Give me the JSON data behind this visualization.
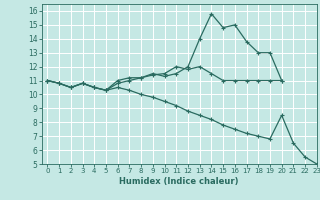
{
  "xlabel": "Humidex (Indice chaleur)",
  "xlim": [
    -0.5,
    23
  ],
  "ylim": [
    5,
    16.5
  ],
  "xticks": [
    0,
    1,
    2,
    3,
    4,
    5,
    6,
    7,
    8,
    9,
    10,
    11,
    12,
    13,
    14,
    15,
    16,
    17,
    18,
    19,
    20,
    21,
    22,
    23
  ],
  "yticks": [
    5,
    6,
    7,
    8,
    9,
    10,
    11,
    12,
    13,
    14,
    15,
    16
  ],
  "bg_color": "#c5e8e4",
  "line_color": "#2a6b60",
  "grid_color": "#ffffff",
  "line1_x": [
    0,
    1,
    2,
    3,
    4,
    5,
    6,
    7,
    8,
    9,
    10,
    11,
    12,
    13,
    14,
    15,
    16,
    17,
    18,
    19,
    20
  ],
  "line1_y": [
    11,
    10.8,
    10.5,
    10.8,
    10.5,
    10.3,
    11.0,
    11.2,
    11.2,
    11.5,
    11.3,
    11.5,
    12.0,
    14.0,
    15.8,
    14.8,
    15.0,
    13.8,
    13.0,
    13.0,
    11.0
  ],
  "line2_x": [
    0,
    1,
    2,
    3,
    4,
    5,
    6,
    7,
    8,
    9,
    10,
    11,
    12,
    13,
    14,
    15,
    16,
    17,
    18,
    19,
    20
  ],
  "line2_y": [
    11,
    10.8,
    10.5,
    10.8,
    10.5,
    10.3,
    10.8,
    11.0,
    11.2,
    11.4,
    11.5,
    12.0,
    11.8,
    12.0,
    11.5,
    11.0,
    11.0,
    11.0,
    11.0,
    11.0,
    11.0
  ],
  "line3_x": [
    0,
    1,
    2,
    3,
    4,
    5,
    6,
    7,
    8,
    9,
    10,
    11,
    12,
    13,
    14,
    15,
    16,
    17,
    18,
    19,
    20,
    21,
    22,
    23
  ],
  "line3_y": [
    11,
    10.8,
    10.5,
    10.8,
    10.5,
    10.3,
    10.5,
    10.3,
    10.0,
    9.8,
    9.5,
    9.2,
    8.8,
    8.5,
    8.2,
    7.8,
    7.5,
    7.2,
    7.0,
    6.8,
    8.5,
    6.5,
    5.5,
    5.0
  ]
}
